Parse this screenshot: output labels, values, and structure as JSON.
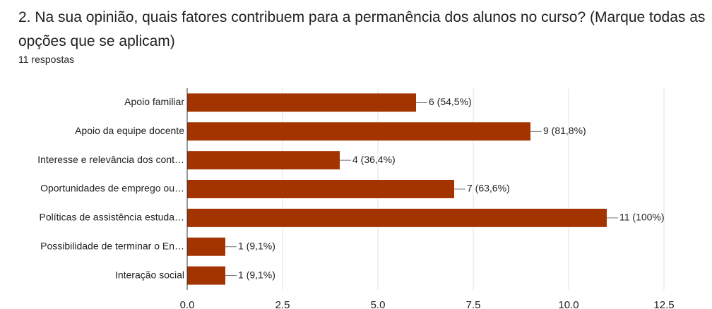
{
  "chart_data": {
    "type": "bar",
    "orientation": "horizontal",
    "title": "2.  Na sua opinião, quais fatores contribuem para a permanência dos alunos no curso?  (Marque todas as opções que se aplicam)",
    "subtitle": "11 respostas",
    "categories": [
      "Apoio familiar",
      "Apoio da equipe docente",
      "Interesse e relevância dos cont…",
      "Oportunidades de emprego ou…",
      "Políticas de assistência estuda…",
      "Possibilidade de terminar o En…",
      "Interação social"
    ],
    "values": [
      6,
      9,
      4,
      7,
      11,
      1,
      1
    ],
    "value_labels": [
      "6 (54,5%)",
      "9 (81,8%)",
      "4 (36,4%)",
      "7 (63,6%)",
      "11 (100%)",
      "1 (9,1%)",
      "1 (9,1%)"
    ],
    "color": "#a33400",
    "xlim": [
      0,
      12.5
    ],
    "xticks": [
      {
        "value": 0,
        "label": "0.0"
      },
      2.5,
      {
        "value": 5,
        "label": "5.0"
      },
      7.5,
      {
        "value": 10,
        "label": "10.0"
      },
      12.5
    ],
    "grid": true
  }
}
